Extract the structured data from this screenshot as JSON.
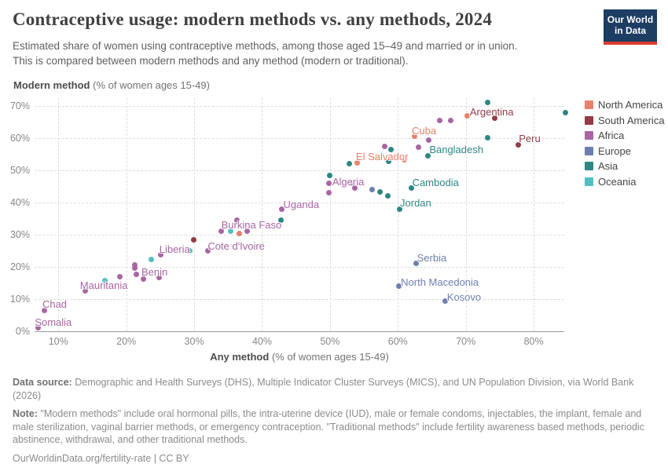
{
  "header": {
    "title": "Contraceptive usage: modern methods vs. any methods, 2024",
    "subtitle_line1": "Estimated share of women using contraceptive methods, among those aged 15–49 and married or in union.",
    "subtitle_line2": "This is compared between modern methods and any method (modern or traditional)."
  },
  "logo": {
    "line1": "Our World",
    "line2": "in Data",
    "bg_color": "#1d3d63",
    "accent_color": "#dc3b2e"
  },
  "axes": {
    "y_title_bold": "Modern method",
    "y_title_rest": " (% of women ages 15-49)",
    "x_title_bold": "Any method",
    "x_title_rest": " (% of women ages 15-49)"
  },
  "chart_data": {
    "type": "scatter",
    "title": "Contraceptive usage: modern methods vs. any methods, 2024",
    "xlabel": "Any method (% of women ages 15-49)",
    "ylabel": "Modern method (% of women ages 15-49)",
    "xlim": [
      6.5,
      84.5
    ],
    "ylim": [
      0,
      72.4
    ],
    "x_ticks": [
      10,
      20,
      30,
      40,
      50,
      60,
      70,
      80
    ],
    "y_ticks": [
      0,
      10,
      20,
      30,
      40,
      50,
      60,
      70
    ],
    "tick_suffix": "%",
    "grid": true,
    "legend_position": "right",
    "series": [
      {
        "name": "North America",
        "color": "#e8826b",
        "points": [
          {
            "x": 36.6,
            "y": 30.3
          },
          {
            "x": 54,
            "y": 52.2
          },
          {
            "x": 61,
            "y": 53.3,
            "label": "El Salvador",
            "lx": -62,
            "ly": -11
          },
          {
            "x": 62.4,
            "y": 60.5,
            "label": "Cuba",
            "lx": -3,
            "ly": -15
          },
          {
            "x": 70.2,
            "y": 66.8
          }
        ]
      },
      {
        "name": "South America",
        "color": "#913b47",
        "points": [
          {
            "x": 29.9,
            "y": 28.3
          },
          {
            "x": 74.3,
            "y": 66.3,
            "label": "Argentina",
            "lx": -32,
            "ly": -15
          },
          {
            "x": 77.7,
            "y": 58,
            "label": "Peru",
            "lx": 1,
            "ly": -15
          }
        ]
      },
      {
        "name": "Africa",
        "color": "#a865a2",
        "points": [
          {
            "x": 7,
            "y": 1,
            "label": "Somalia",
            "lx": -4,
            "ly": -15
          },
          {
            "x": 8,
            "y": 6.5,
            "label": "Chad",
            "lx": -3,
            "ly": -15
          },
          {
            "x": 14,
            "y": 12.5,
            "label": "Mauritania",
            "lx": -7,
            "ly": -15
          },
          {
            "x": 19,
            "y": 17
          },
          {
            "x": 21.3,
            "y": 20.7
          },
          {
            "x": 21.3,
            "y": 19.6
          },
          {
            "x": 21.5,
            "y": 17.6
          },
          {
            "x": 22.5,
            "y": 16.3
          },
          {
            "x": 24.9,
            "y": 16.8,
            "label": "Benin",
            "lx": -23,
            "ly": -14
          },
          {
            "x": 25.1,
            "y": 23.7,
            "label": "Liberia",
            "lx": -2,
            "ly": -15
          },
          {
            "x": 32,
            "y": 25.1,
            "label": "Cote d'Ivoire",
            "lx": 0,
            "ly": -13
          },
          {
            "x": 34,
            "y": 31,
            "label": "Burkina Faso",
            "lx": 0,
            "ly": -16
          },
          {
            "x": 37.8,
            "y": 31
          },
          {
            "x": 36.3,
            "y": 34.6
          },
          {
            "x": 42.9,
            "y": 37.8,
            "label": "Uganda",
            "lx": 2,
            "ly": -14
          },
          {
            "x": 49.8,
            "y": 46
          },
          {
            "x": 49.8,
            "y": 43
          },
          {
            "x": 53.7,
            "y": 44.6,
            "label": "Algeria",
            "lx": -29,
            "ly": -15
          },
          {
            "x": 58,
            "y": 57.3
          },
          {
            "x": 63,
            "y": 57.1
          },
          {
            "x": 64.5,
            "y": 59.3
          },
          {
            "x": 66.2,
            "y": 65.4
          },
          {
            "x": 67.8,
            "y": 65.4
          }
        ]
      },
      {
        "name": "Europe",
        "color": "#6d7fae",
        "points": [
          {
            "x": 53.2,
            "y": 46
          },
          {
            "x": 56.2,
            "y": 43.9
          },
          {
            "x": 62.7,
            "y": 21.2,
            "label": "Serbia",
            "lx": 1,
            "ly": -14
          },
          {
            "x": 60.1,
            "y": 14,
            "label": "North Macedonia",
            "lx": 3,
            "ly": -13
          },
          {
            "x": 67,
            "y": 9.3,
            "label": "Kosovo",
            "lx": 2,
            "ly": -13
          }
        ]
      },
      {
        "name": "Asia",
        "color": "#2d8784",
        "points": [
          {
            "x": 42.8,
            "y": 34.4
          },
          {
            "x": 50,
            "y": 48.3
          },
          {
            "x": 52.8,
            "y": 52
          },
          {
            "x": 57.4,
            "y": 43.2
          },
          {
            "x": 58.5,
            "y": 42
          },
          {
            "x": 58.6,
            "y": 52.7
          },
          {
            "x": 59,
            "y": 56.5
          },
          {
            "x": 60.2,
            "y": 38,
            "label": "Jordan",
            "lx": 1,
            "ly": -15
          },
          {
            "x": 62,
            "y": 44.4,
            "label": "Cambodia",
            "lx": 1,
            "ly": -15
          },
          {
            "x": 64.4,
            "y": 54.6,
            "label": "Bangladesh",
            "lx": 2,
            "ly": -15
          },
          {
            "x": 73.2,
            "y": 71
          },
          {
            "x": 73.2,
            "y": 60
          },
          {
            "x": 84.7,
            "y": 67.8
          }
        ]
      },
      {
        "name": "Oceania",
        "color": "#54bec0",
        "points": [
          {
            "x": 16.8,
            "y": 15.7
          },
          {
            "x": 23.7,
            "y": 22.2
          },
          {
            "x": 29.4,
            "y": 25.1
          },
          {
            "x": 35.4,
            "y": 31
          }
        ]
      }
    ]
  },
  "footer": {
    "datasource_label": "Data source:",
    "datasource_text": "Demographic and Health Surveys (DHS), Multiple Indicator Cluster Surveys (MICS), and UN Population Division, via World Bank (2026)",
    "note_label": "Note:",
    "note_text": "\"Modern methods\" include oral hormonal pills, the intra-uterine device (IUD), male or female condoms, injectables, the implant, female and male sterilization, vaginal barrier methods, or emergency contraception. \"Traditional methods\" include fertility awareness based methods, periodic abstinence, withdrawal, and other traditional methods.",
    "link_line": "OurWorldinData.org/fertility-rate | CC BY"
  }
}
